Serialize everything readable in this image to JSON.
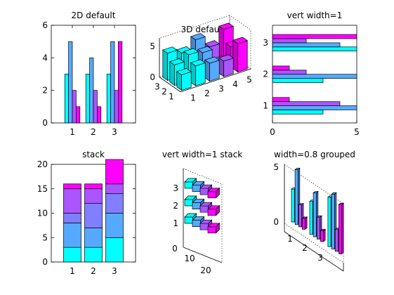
{
  "figure": {
    "palette": [
      "#00ffff",
      "#55aaff",
      "#aa55ff",
      "#ff00ff"
    ]
  },
  "chart_data": [
    {
      "id": "p1",
      "title": "2D default",
      "type": "bar",
      "layout": "grouped",
      "categories": [
        "1",
        "2",
        "3"
      ],
      "series": [
        {
          "values": [
            3,
            3,
            3
          ]
        },
        {
          "values": [
            5,
            4,
            5
          ]
        },
        {
          "values": [
            2,
            2,
            2
          ]
        },
        {
          "values": [
            1,
            1,
            5
          ]
        }
      ],
      "ylim": [
        0,
        6
      ],
      "yticks": [
        "0",
        "2",
        "4",
        "6"
      ]
    },
    {
      "id": "p2",
      "title": "3D default",
      "type": "bar",
      "layout": "3d-detached",
      "categories": [
        "1",
        "2",
        "3"
      ],
      "series_ticks": [
        "1",
        "2",
        "3",
        "4",
        "5"
      ],
      "zticks": [
        "0",
        "5"
      ],
      "z_rows": [
        [
          2.5,
          3.2,
          2.9,
          2.5,
          4.6
        ],
        [
          3.3,
          4.2,
          3.8,
          1.5,
          3.3
        ],
        [
          4.4,
          3.7,
          5.1,
          3.2,
          5.3
        ]
      ]
    },
    {
      "id": "p3",
      "title": "vert width=1",
      "type": "bar",
      "layout": "horizontal-grouped",
      "categories": [
        "1",
        "2",
        "3"
      ],
      "series": [
        {
          "values": [
            3,
            3,
            5
          ]
        },
        {
          "values": [
            5,
            5,
            4
          ]
        },
        {
          "values": [
            4,
            2,
            2
          ]
        },
        {
          "values": [
            1,
            1,
            5
          ]
        }
      ],
      "xlim": [
        0,
        5
      ],
      "xticks": [
        "0",
        "5"
      ]
    },
    {
      "id": "p4",
      "title": "stack",
      "type": "bar",
      "layout": "stacked",
      "categories": [
        "1",
        "2",
        "3"
      ],
      "series": [
        {
          "values": [
            3,
            3,
            5
          ]
        },
        {
          "values": [
            5,
            4,
            5
          ]
        },
        {
          "values": [
            2,
            5,
            4
          ]
        },
        {
          "values": [
            5,
            3,
            2
          ]
        },
        {
          "values": [
            1,
            1,
            5
          ]
        }
      ],
      "series_colors": [
        "#00ffff",
        "#55aaff",
        "#7f7fff",
        "#aa55ff",
        "#ff00ff"
      ],
      "ylim": [
        0,
        20
      ],
      "yticks": [
        "0",
        "5",
        "10",
        "15",
        "20"
      ]
    },
    {
      "id": "p5",
      "title": "vert width=1 stack",
      "type": "bar",
      "layout": "3d-horizontal-stacked",
      "categories": [
        "1",
        "2",
        "3"
      ],
      "series": [
        {
          "values": [
            3,
            3,
            3
          ]
        },
        {
          "values": [
            3,
            3,
            3
          ]
        },
        {
          "values": [
            3,
            3,
            3
          ]
        },
        {
          "values": [
            3,
            3,
            3
          ]
        }
      ],
      "ticks_vertical": [
        "1",
        "2",
        "3"
      ],
      "ticks_depth": [
        "0",
        "10",
        "20"
      ]
    },
    {
      "id": "p6",
      "title": "width=0.8 grouped",
      "type": "bar",
      "layout": "3d-grouped",
      "categories": [
        "1",
        "2",
        "3"
      ],
      "series": [
        {
          "values": [
            3,
            3,
            4.5
          ]
        },
        {
          "values": [
            5,
            4,
            5
          ]
        },
        {
          "values": [
            2,
            2,
            2
          ]
        },
        {
          "values": [
            1,
            1,
            4.5
          ]
        }
      ],
      "zticks": [
        "0",
        "5"
      ]
    }
  ]
}
